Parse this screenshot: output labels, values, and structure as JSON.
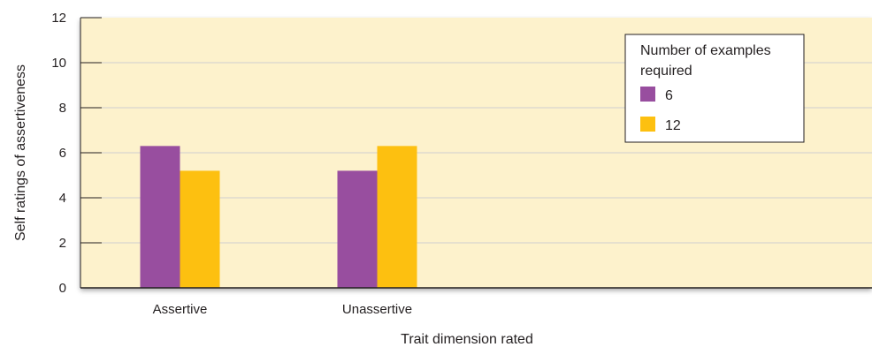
{
  "chart_data": {
    "type": "bar",
    "categories": [
      "Assertive",
      "Unassertive"
    ],
    "series": [
      {
        "name": "6",
        "values": [
          6.3,
          5.2
        ],
        "color": "#984e9f"
      },
      {
        "name": "12",
        "values": [
          5.2,
          6.3
        ],
        "color": "#fdc010"
      }
    ],
    "title": "",
    "xlabel": "Trait dimension rated",
    "ylabel": "Self ratings of assertiveness",
    "ylim": [
      0,
      12
    ],
    "yticks": [
      0,
      2,
      4,
      6,
      8,
      10,
      12
    ],
    "grid": true,
    "plot_background": "#fdf2cc",
    "grid_color": "#cfcfcf",
    "legend": {
      "title_lines": [
        "Number of examples",
        "required"
      ],
      "placement": "top-right"
    }
  }
}
